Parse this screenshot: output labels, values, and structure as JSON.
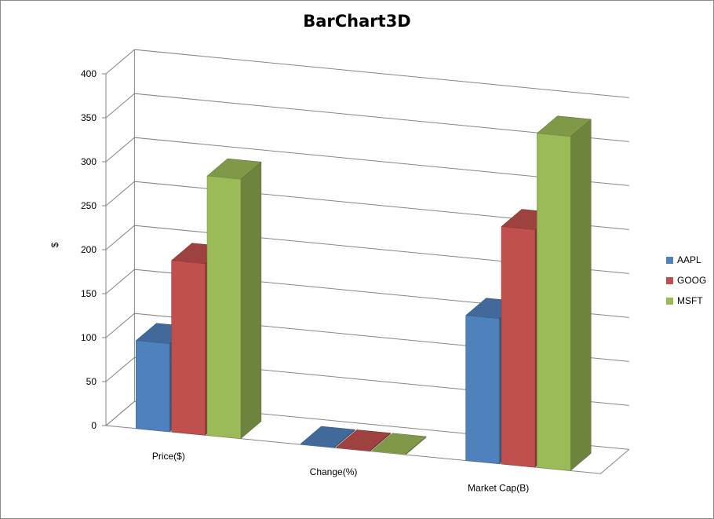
{
  "chart_data": {
    "type": "bar",
    "title": "BarChart3D",
    "ylabel": "$",
    "xlabel": "",
    "ylim": [
      0,
      400
    ],
    "yticks": [
      0,
      50,
      100,
      150,
      200,
      250,
      300,
      350,
      400
    ],
    "grid": true,
    "legend_position": "right",
    "categories": [
      "Price($)",
      "Change(%)",
      "Market Cap(B)"
    ],
    "series": [
      {
        "name": "AAPL",
        "color": "#4F81BD",
        "values": [
          100,
          1,
          165
        ]
      },
      {
        "name": "GOOG",
        "color": "#C0504D",
        "values": [
          195,
          1,
          270
        ]
      },
      {
        "name": "MSFT",
        "color": "#9BBB59",
        "values": [
          295,
          1,
          380
        ]
      }
    ]
  }
}
